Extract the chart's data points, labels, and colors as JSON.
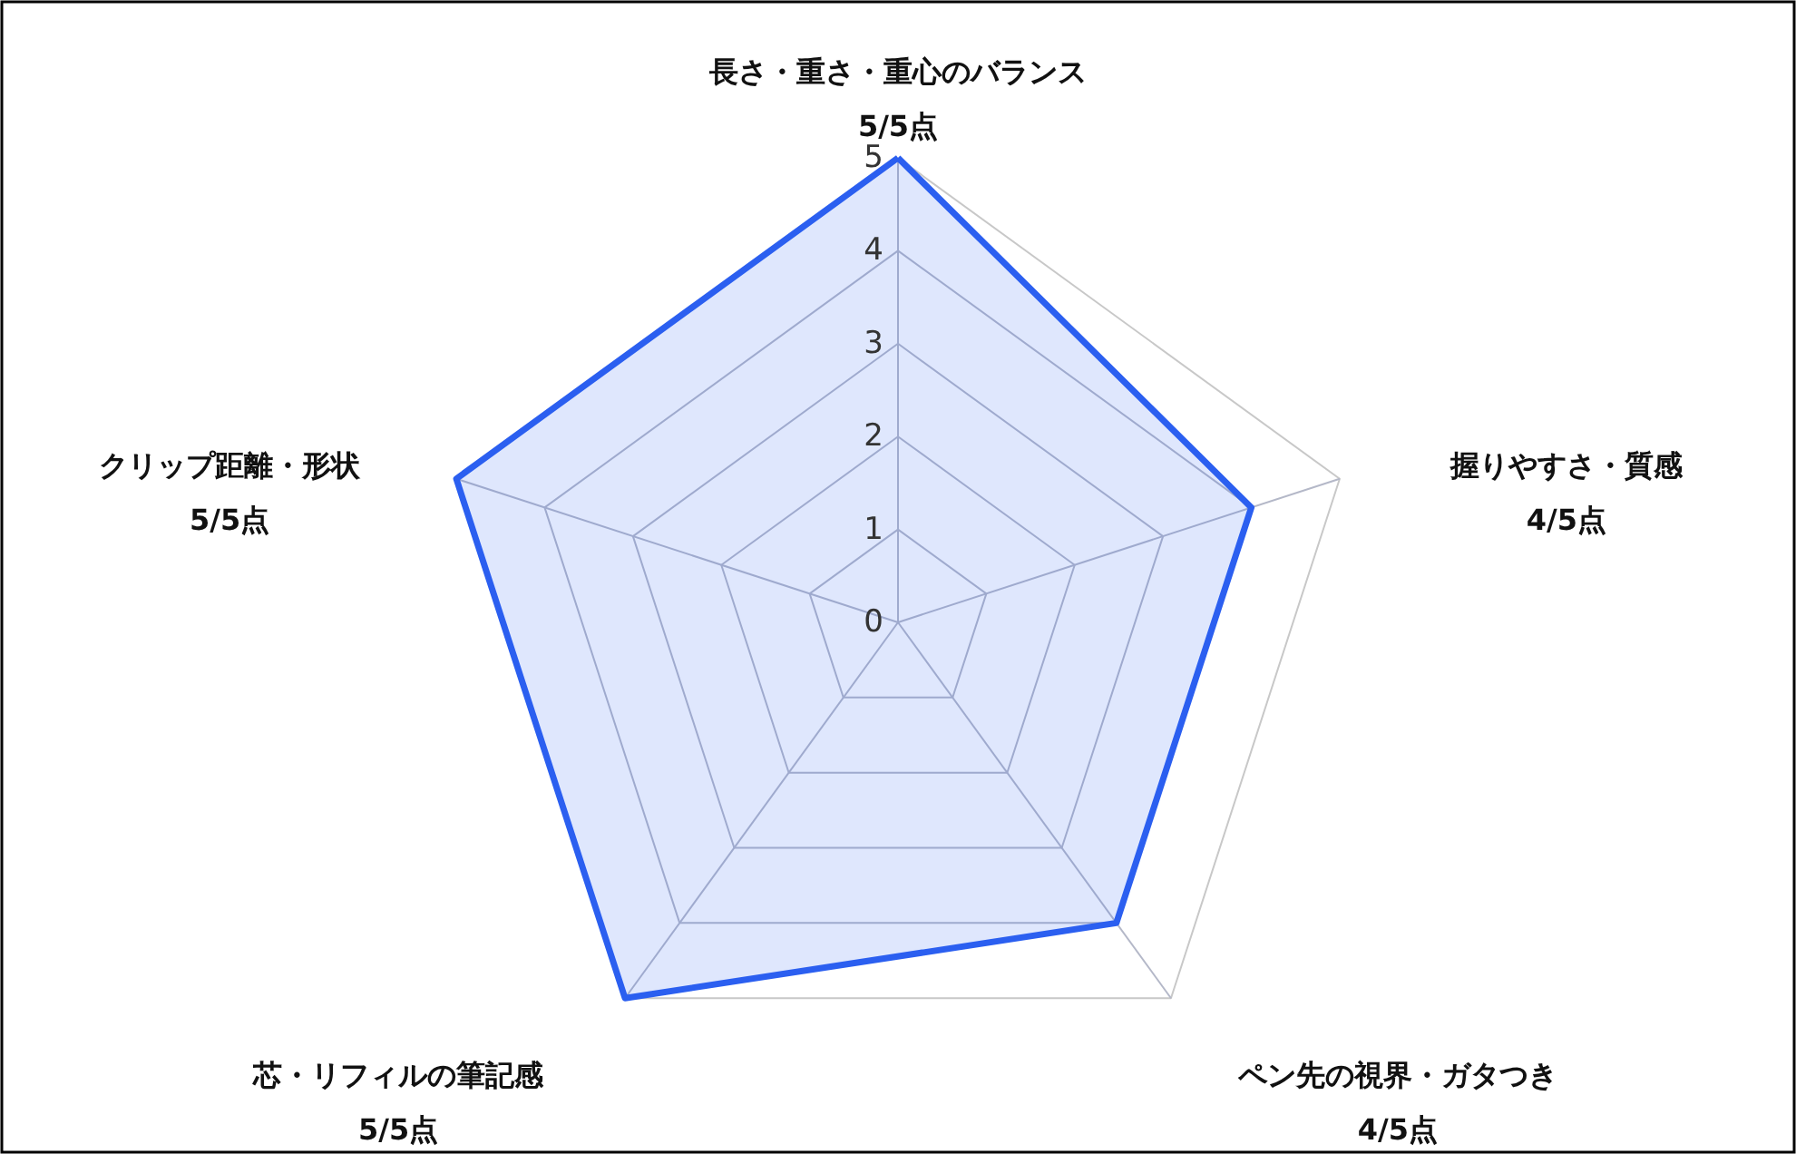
{
  "chart_data": {
    "type": "radar",
    "categories": [
      "長さ・重さ・重心のバランス",
      "握りやすさ・質感",
      "ペン先の視界・ガタつき",
      "芯・リフィルの筆記感",
      "クリップ距離・形状"
    ],
    "series": [
      {
        "color": "#2b5ff0",
        "values": [
          5,
          4,
          4,
          5,
          5
        ]
      }
    ],
    "value_labels": [
      "5/5点",
      "4/5点",
      "4/5点",
      "5/5点",
      "5/5点"
    ],
    "ylim": [
      0,
      5
    ],
    "yticks": [
      0,
      1,
      2,
      3,
      4,
      5
    ],
    "grid": true
  }
}
